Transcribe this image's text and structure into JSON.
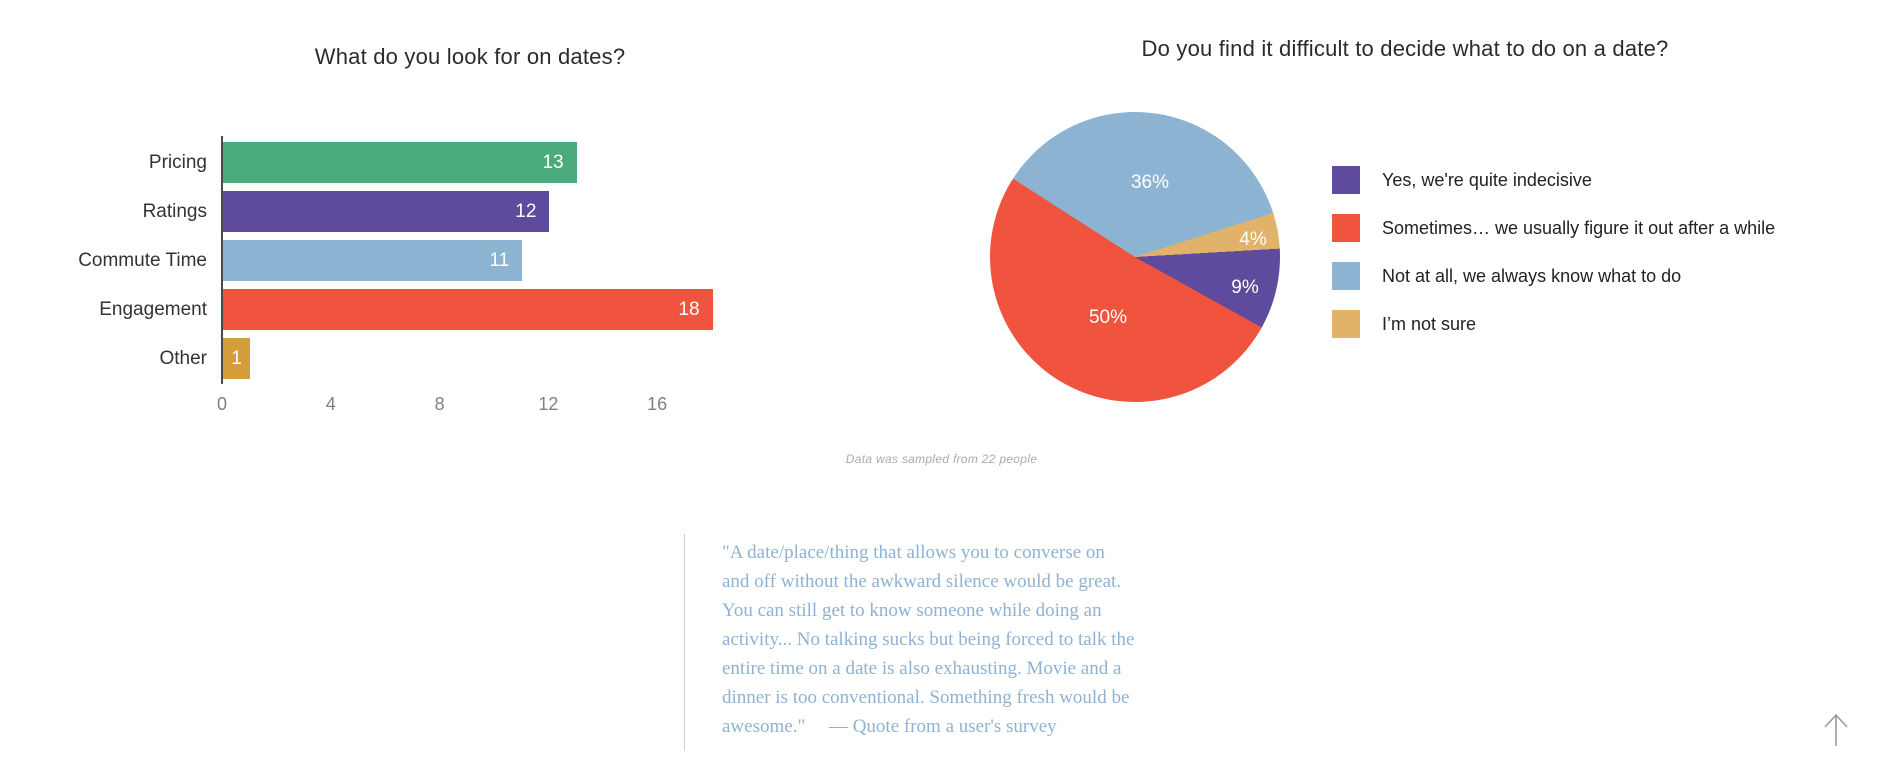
{
  "chart_data": [
    {
      "type": "bar",
      "orientation": "horizontal",
      "title": "What do you look for on dates?",
      "categories": [
        "Pricing",
        "Ratings",
        "Commute Time",
        "Engagement",
        "Other"
      ],
      "values": [
        13,
        12,
        11,
        18,
        1
      ],
      "colors": [
        "#4bab7d",
        "#5f4b9e",
        "#8cb4d2",
        "#f0533e",
        "#d39d3c"
      ],
      "xticks": [
        0,
        4,
        8,
        12,
        16
      ],
      "xlim": [
        0,
        18
      ],
      "grid": false,
      "legend": "none"
    },
    {
      "type": "pie",
      "title": "Do you find it difficult to decide what to do on a date?",
      "slices": [
        {
          "label": "Not at all, we always know what to do",
          "pct": 36,
          "pct_label": "36%",
          "color": "#8cb4d2"
        },
        {
          "label": "I'm not sure",
          "pct": 4,
          "pct_label": "4%",
          "color": "#e1b269"
        },
        {
          "label": "Yes, we're quite indecisive",
          "pct": 9,
          "pct_label": "9%",
          "color": "#5f4b9e"
        },
        {
          "label": "Sometimes… we usually figure it out after a while",
          "pct": 50,
          "pct_label": "50%",
          "color": "#f0533e"
        }
      ],
      "legend_position": "right",
      "legend": [
        {
          "label": "Yes, we're quite indecisive",
          "color": "#5f4b9e"
        },
        {
          "label": "Sometimes… we usually figure it out after a while",
          "color": "#f0533e"
        },
        {
          "label": "Not at all, we always know what to do",
          "color": "#8cb4d2"
        },
        {
          "label": "I’m not sure",
          "color": "#e1b269"
        }
      ]
    }
  ],
  "footnote": "Data was sampled from 22 people",
  "quote": {
    "lines": [
      "\"A date/place/thing that allows you to converse on",
      "and off without the awkward silence would be great.",
      "You can still get to know someone while doing an",
      "activity... No talking sucks but being forced to talk the",
      "entire time on a date is also exhausting. Movie and a",
      "dinner is too conventional. Something fresh would be",
      "awesome.\"     — Quote from a user's survey"
    ]
  },
  "icons": {
    "scroll_top": "up-arrow"
  }
}
